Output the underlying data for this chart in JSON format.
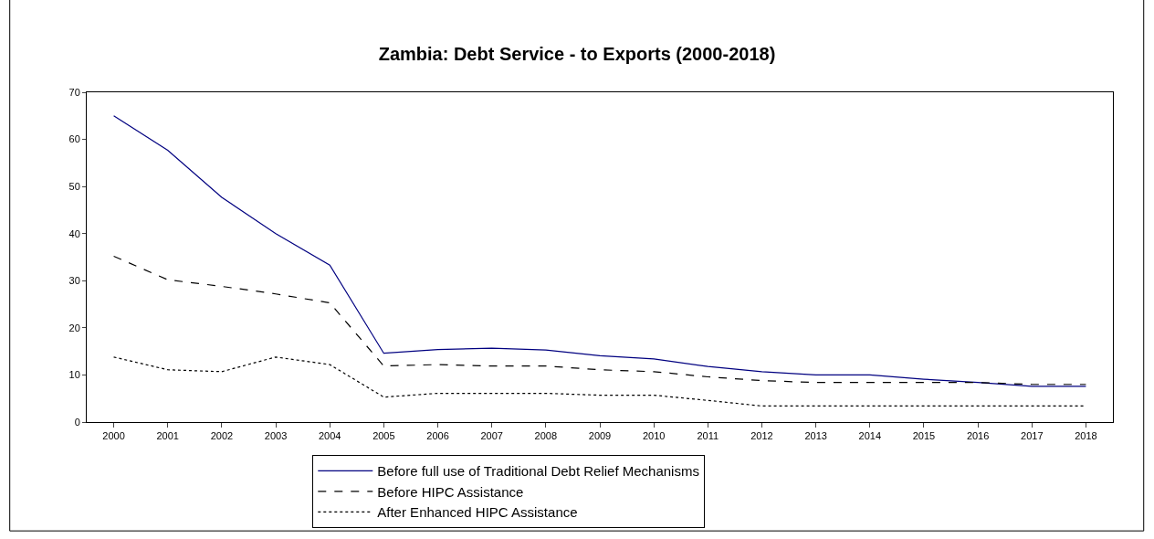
{
  "chart_data": {
    "type": "line",
    "title": "Zambia: Debt Service - to Exports (2000-2018)",
    "categories": [
      "2000",
      "2001",
      "2002",
      "2003",
      "2004",
      "2005",
      "2006",
      "2007",
      "2008",
      "2009",
      "2010",
      "2011",
      "2012",
      "2013",
      "2014",
      "2015",
      "2016",
      "2017",
      "2018"
    ],
    "series": [
      {
        "name": "Before full use of Traditional Debt Relief Mechanisms",
        "color": "#000080",
        "line_style": "solid",
        "values": [
          65,
          57.7,
          47.7,
          40,
          33.3,
          14.6,
          15.4,
          15.7,
          15.3,
          14.1,
          13.4,
          11.8,
          10.7,
          10,
          10,
          9.1,
          8.4,
          7.6,
          7.6
        ]
      },
      {
        "name": "Before HIPC Assistance",
        "color": "#000000",
        "line_style": "dashed",
        "values": [
          35.2,
          30.2,
          28.8,
          27.2,
          25.3,
          11.9,
          12.2,
          11.9,
          11.9,
          11.1,
          10.7,
          9.6,
          8.8,
          8.4,
          8.4,
          8.4,
          8.4,
          8,
          8
        ]
      },
      {
        "name": "After Enhanced HIPC Assistance",
        "color": "#000000",
        "line_style": "dotted",
        "values": [
          13.8,
          11.1,
          10.7,
          13.8,
          12.2,
          5.3,
          6.1,
          6.1,
          6.1,
          5.7,
          5.7,
          4.6,
          3.4,
          3.4,
          3.4,
          3.4,
          3.4,
          3.4,
          3.4
        ]
      }
    ],
    "ylim": [
      0,
      70
    ],
    "yticks": [
      0,
      10,
      20,
      30,
      40,
      50,
      60,
      70
    ],
    "grid": false,
    "legend": "bottom",
    "marker": "none"
  }
}
